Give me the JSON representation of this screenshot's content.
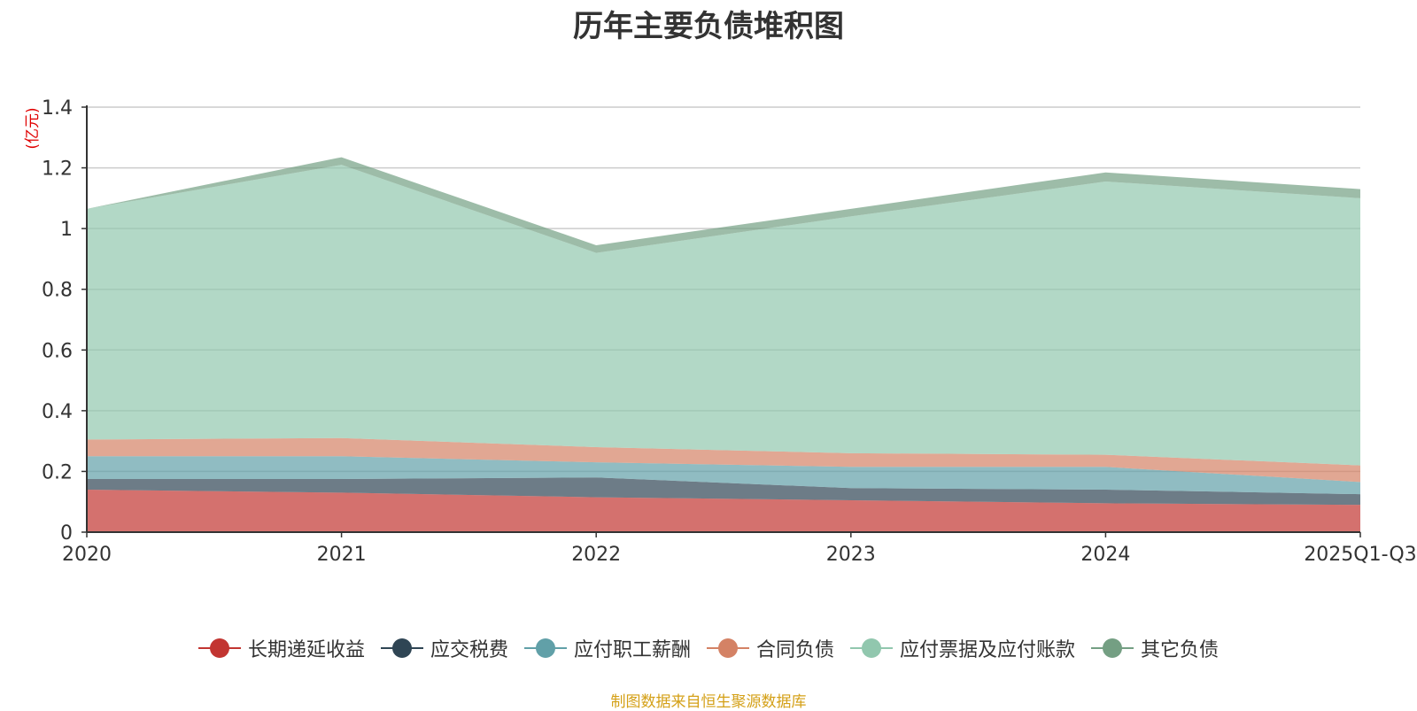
{
  "chart_data": {
    "type": "area",
    "title": "历年主要负债堆积图",
    "ylabel": "(亿元)",
    "xlabel": "",
    "categories": [
      "2020",
      "2021",
      "2022",
      "2023",
      "2024",
      "2025Q1-Q3"
    ],
    "y_ticks": [
      "0",
      "0.2",
      "0.4",
      "0.6",
      "0.8",
      "1",
      "1.2",
      "1.4"
    ],
    "ylim": [
      0,
      1.4
    ],
    "stacked": true,
    "grid": true,
    "legend_position": "bottom",
    "series": [
      {
        "name": "长期递延收益",
        "color": "#c23531",
        "values": [
          0.14,
          0.13,
          0.115,
          0.105,
          0.095,
          0.09
        ]
      },
      {
        "name": "应交税费",
        "color": "#2f4554",
        "values": [
          0.035,
          0.045,
          0.065,
          0.04,
          0.045,
          0.035
        ]
      },
      {
        "name": "应付职工薪酬",
        "color": "#61a0a8",
        "values": [
          0.075,
          0.075,
          0.05,
          0.07,
          0.075,
          0.04
        ]
      },
      {
        "name": "合同负债",
        "color": "#d48265",
        "values": [
          0.055,
          0.06,
          0.05,
          0.045,
          0.04,
          0.055
        ]
      },
      {
        "name": "应付票据及应付账款",
        "color": "#91c7ae",
        "values": [
          0.76,
          0.9,
          0.64,
          0.78,
          0.9,
          0.88
        ]
      },
      {
        "name": "其它负债",
        "color": "#749f83",
        "values": [
          0.0,
          0.025,
          0.025,
          0.025,
          0.03,
          0.03
        ]
      }
    ]
  },
  "source_note": "制图数据来自恒生聚源数据库"
}
